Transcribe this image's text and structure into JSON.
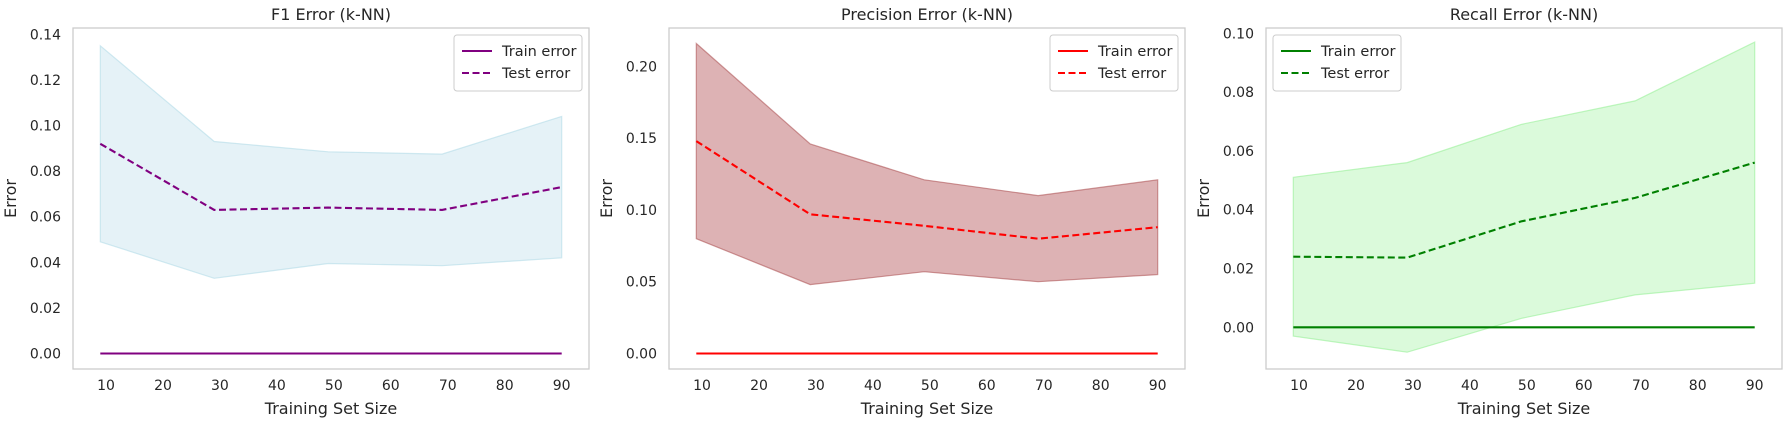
{
  "chart_data": [
    {
      "type": "line",
      "title": "F1 Error (k-NN)",
      "xlabel": "Training Set Size",
      "ylabel": "Error",
      "x": [
        9,
        29,
        49,
        69,
        90
      ],
      "xticks": [
        "10",
        "20",
        "30",
        "40",
        "50",
        "60",
        "70",
        "80",
        "90"
      ],
      "yticks": [
        "0.00",
        "0.02",
        "0.04",
        "0.06",
        "0.08",
        "0.10",
        "0.12",
        "0.14"
      ],
      "xlim": [
        4.2,
        94.8
      ],
      "ylim": [
        -0.0068,
        0.1428
      ],
      "grid": false,
      "legend_position": "upper right",
      "color": "#800080",
      "band_fill": "#add8e6",
      "band_stroke": "#add8e6",
      "band_opacity": 0.32,
      "series": [
        {
          "name": "Train error",
          "style": "solid",
          "values": [
            0,
            0,
            0,
            0,
            0
          ]
        },
        {
          "name": "Test error",
          "style": "dashed",
          "values": [
            0.092,
            0.063,
            0.064,
            0.063,
            0.073
          ]
        }
      ],
      "band": {
        "upper": [
          0.135,
          0.093,
          0.0885,
          0.0875,
          0.104
        ],
        "lower": [
          0.049,
          0.033,
          0.0395,
          0.0385,
          0.042
        ]
      }
    },
    {
      "type": "line",
      "title": "Precision Error (k-NN)",
      "xlabel": "Training Set Size",
      "ylabel": "Error",
      "x": [
        9,
        29,
        49,
        69,
        90
      ],
      "xticks": [
        "10",
        "20",
        "30",
        "40",
        "50",
        "60",
        "70",
        "80",
        "90"
      ],
      "yticks": [
        "0.00",
        "0.05",
        "0.10",
        "0.15",
        "0.20"
      ],
      "xlim": [
        4.2,
        94.8
      ],
      "ylim": [
        -0.0108,
        0.2268
      ],
      "grid": false,
      "legend_position": "upper right",
      "color": "#ff0000",
      "band_fill": "#c47a7d",
      "band_stroke": "#a94a4d",
      "band_opacity": 0.58,
      "series": [
        {
          "name": "Train error",
          "style": "solid",
          "values": [
            0,
            0,
            0,
            0,
            0
          ]
        },
        {
          "name": "Test error",
          "style": "dashed",
          "values": [
            0.148,
            0.097,
            0.089,
            0.08,
            0.088
          ]
        }
      ],
      "band": {
        "upper": [
          0.216,
          0.146,
          0.121,
          0.11,
          0.121
        ],
        "lower": [
          0.08,
          0.048,
          0.057,
          0.05,
          0.055
        ]
      }
    },
    {
      "type": "line",
      "title": "Recall Error (k-NN)",
      "xlabel": "Training Set Size",
      "ylabel": "Error",
      "x": [
        9,
        29,
        49,
        69,
        90
      ],
      "xticks": [
        "10",
        "20",
        "30",
        "40",
        "50",
        "60",
        "70",
        "80",
        "90"
      ],
      "yticks": [
        "0.00",
        "0.02",
        "0.04",
        "0.06",
        "0.08",
        "0.10"
      ],
      "xlim": [
        4.2,
        94.8
      ],
      "ylim": [
        -0.0142,
        0.1018
      ],
      "grid": false,
      "legend_position": "upper left",
      "color": "#008000",
      "band_fill": "#90ee90",
      "band_stroke": "#90ee90",
      "band_opacity": 0.32,
      "series": [
        {
          "name": "Train error",
          "style": "solid",
          "values": [
            0,
            0,
            0,
            0,
            0
          ]
        },
        {
          "name": "Test error",
          "style": "dashed",
          "values": [
            0.024,
            0.0237,
            0.036,
            0.044,
            0.056
          ]
        }
      ],
      "band": {
        "upper": [
          0.051,
          0.056,
          0.069,
          0.077,
          0.097
        ],
        "lower": [
          -0.003,
          -0.0085,
          0.003,
          0.011,
          0.015
        ]
      }
    }
  ]
}
